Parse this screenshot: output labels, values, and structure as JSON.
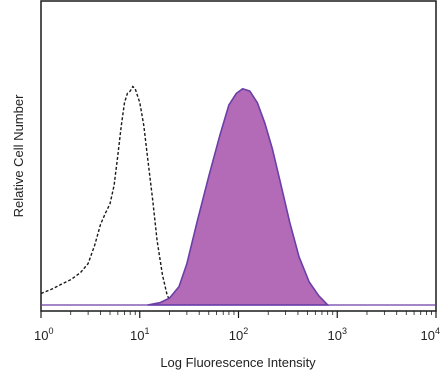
{
  "chart_data": {
    "type": "area",
    "title": "",
    "xlabel": "Log Fluorescence Intensity",
    "ylabel": "Relative Cell Number",
    "x_scale": "log",
    "xlim": [
      1,
      10000
    ],
    "ylim": [
      0,
      1
    ],
    "y_ticks_labeled": false,
    "grid": false,
    "legend": "none",
    "x_ticks": [
      {
        "value": 1,
        "base": "10",
        "exp": "0"
      },
      {
        "value": 10,
        "base": "10",
        "exp": "1"
      },
      {
        "value": 100,
        "base": "10",
        "exp": "2"
      },
      {
        "value": 1000,
        "base": "10",
        "exp": "3"
      },
      {
        "value": 10000,
        "base": "10",
        "exp": "4"
      }
    ],
    "series": [
      {
        "style": "dashed-outline",
        "color": "#1a1a1a",
        "points": [
          [
            1.0,
            0.05
          ],
          [
            1.3,
            0.07
          ],
          [
            1.6,
            0.09
          ],
          [
            2.0,
            0.11
          ],
          [
            2.5,
            0.14
          ],
          [
            3.0,
            0.18
          ],
          [
            3.5,
            0.26
          ],
          [
            4.0,
            0.35
          ],
          [
            4.5,
            0.4
          ],
          [
            5.0,
            0.44
          ],
          [
            5.5,
            0.52
          ],
          [
            6.0,
            0.65
          ],
          [
            6.5,
            0.78
          ],
          [
            7.0,
            0.88
          ],
          [
            7.5,
            0.92
          ],
          [
            8.0,
            0.93
          ],
          [
            8.5,
            0.95
          ],
          [
            9.0,
            0.94
          ],
          [
            10.0,
            0.88
          ],
          [
            11.0,
            0.78
          ],
          [
            12.0,
            0.64
          ],
          [
            13.5,
            0.46
          ],
          [
            15.0,
            0.28
          ],
          [
            17.0,
            0.13
          ],
          [
            19.0,
            0.04
          ],
          [
            22.0,
            0.0
          ]
        ]
      },
      {
        "style": "filled",
        "color": "#6a3fa6",
        "fill": "#b36bb8",
        "points": [
          [
            12.0,
            0.0
          ],
          [
            16.0,
            0.01
          ],
          [
            20.0,
            0.03
          ],
          [
            25.0,
            0.08
          ],
          [
            30.0,
            0.18
          ],
          [
            38.0,
            0.36
          ],
          [
            50.0,
            0.56
          ],
          [
            65.0,
            0.74
          ],
          [
            80.0,
            0.87
          ],
          [
            95.0,
            0.92
          ],
          [
            110.0,
            0.94
          ],
          [
            130.0,
            0.93
          ],
          [
            155.0,
            0.88
          ],
          [
            185.0,
            0.79
          ],
          [
            220.0,
            0.68
          ],
          [
            270.0,
            0.52
          ],
          [
            330.0,
            0.36
          ],
          [
            410.0,
            0.21
          ],
          [
            520.0,
            0.1
          ],
          [
            650.0,
            0.04
          ],
          [
            800.0,
            0.0
          ]
        ]
      }
    ]
  }
}
